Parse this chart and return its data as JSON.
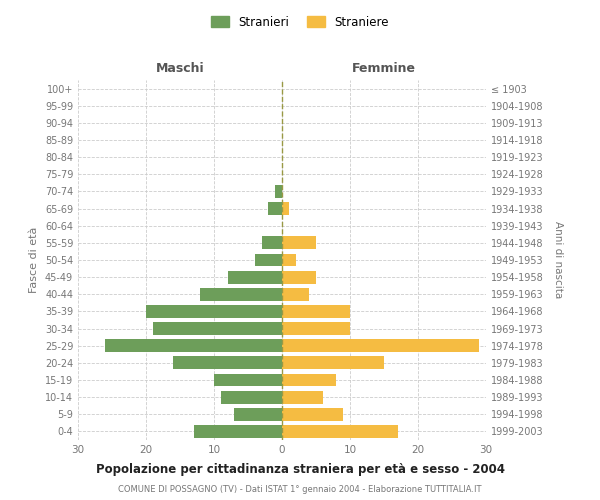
{
  "age_groups": [
    "0-4",
    "5-9",
    "10-14",
    "15-19",
    "20-24",
    "25-29",
    "30-34",
    "35-39",
    "40-44",
    "45-49",
    "50-54",
    "55-59",
    "60-64",
    "65-69",
    "70-74",
    "75-79",
    "80-84",
    "85-89",
    "90-94",
    "95-99",
    "100+"
  ],
  "birth_years": [
    "1999-2003",
    "1994-1998",
    "1989-1993",
    "1984-1988",
    "1979-1983",
    "1974-1978",
    "1969-1973",
    "1964-1968",
    "1959-1963",
    "1954-1958",
    "1949-1953",
    "1944-1948",
    "1939-1943",
    "1934-1938",
    "1929-1933",
    "1924-1928",
    "1919-1923",
    "1914-1918",
    "1909-1913",
    "1904-1908",
    "≤ 1903"
  ],
  "maschi": [
    13,
    7,
    9,
    10,
    16,
    26,
    19,
    20,
    12,
    8,
    4,
    3,
    0,
    2,
    1,
    0,
    0,
    0,
    0,
    0,
    0
  ],
  "femmine": [
    17,
    9,
    6,
    8,
    15,
    29,
    10,
    10,
    4,
    5,
    2,
    5,
    0,
    1,
    0,
    0,
    0,
    0,
    0,
    0,
    0
  ],
  "color_maschi": "#6d9e5a",
  "color_femmine": "#f5bc42",
  "title": "Popolazione per cittadinanza straniera per età e sesso - 2004",
  "subtitle": "COMUNE DI POSSAGNO (TV) - Dati ISTAT 1° gennaio 2004 - Elaborazione TUTTITALIA.IT",
  "xlabel_left": "Maschi",
  "xlabel_right": "Femmine",
  "ylabel_left": "Fasce di età",
  "ylabel_right": "Anni di nascita",
  "legend_maschi": "Stranieri",
  "legend_femmine": "Straniere",
  "xlim": 30,
  "background_color": "#ffffff",
  "grid_color": "#cccccc"
}
